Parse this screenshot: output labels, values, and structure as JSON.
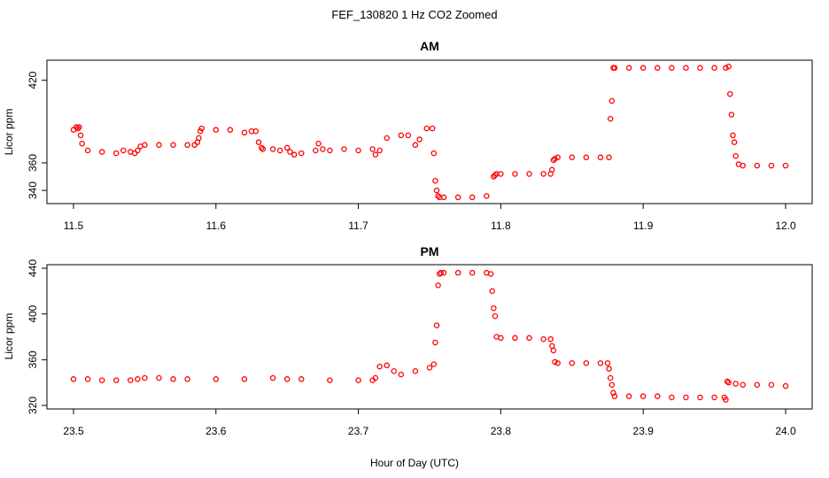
{
  "figure": {
    "title": "FEF_130820  1 Hz CO2 Zoomed",
    "xlabel": "Hour of Day (UTC)",
    "colors": {
      "points": "#ff0000",
      "axes": "#000000",
      "background": "#ffffff"
    }
  },
  "chart_data": [
    {
      "type": "scatter",
      "title": "AM",
      "xlabel": "",
      "ylabel": "Licor ppm",
      "xlim": [
        11.5,
        12.0
      ],
      "ylim": [
        333,
        432
      ],
      "xticks": [
        "11.5",
        "11.6",
        "11.7",
        "11.8",
        "11.9",
        "12.0"
      ],
      "yticks": [
        "340",
        "360",
        "420"
      ],
      "grid": false,
      "marker": "open-circle",
      "series": [
        {
          "x": [
            11.5,
            11.502,
            11.503,
            11.504,
            11.505,
            11.506,
            11.51,
            11.52,
            11.53,
            11.535,
            11.54,
            11.543,
            11.545,
            11.547,
            11.55,
            11.56,
            11.57,
            11.58,
            11.585,
            11.587,
            11.588,
            11.589,
            11.59,
            11.6,
            11.61,
            11.62,
            11.625,
            11.628,
            11.63,
            11.632,
            11.633,
            11.64,
            11.645,
            11.65,
            11.652,
            11.655,
            11.66,
            11.67,
            11.672,
            11.675,
            11.68,
            11.69,
            11.7,
            11.71,
            11.712,
            11.715,
            11.72,
            11.73,
            11.735,
            11.74,
            11.743,
            11.748,
            11.752,
            11.753,
            11.754,
            11.755,
            11.756,
            11.757,
            11.76,
            11.77,
            11.78,
            11.79,
            11.795,
            11.796,
            11.797,
            11.8,
            11.81,
            11.82,
            11.83,
            11.835,
            11.836,
            11.837,
            11.838,
            11.84,
            11.85,
            11.86,
            11.87,
            11.876,
            11.877,
            11.878,
            11.879,
            11.88,
            11.89,
            11.9,
            11.91,
            11.92,
            11.93,
            11.94,
            11.95,
            11.958,
            11.96,
            11.961,
            11.962,
            11.963,
            11.964,
            11.965,
            11.967,
            11.97,
            11.98,
            11.99,
            12.0
          ],
          "y": [
            384,
            386,
            385,
            386,
            380,
            374,
            369,
            368,
            367,
            369,
            368,
            367,
            369,
            372,
            373,
            373,
            373,
            373,
            373,
            375,
            378,
            383,
            385,
            384,
            384,
            382,
            383,
            383,
            375,
            371,
            370,
            370,
            369,
            371,
            368,
            366,
            367,
            369,
            374,
            370,
            369,
            370,
            369,
            370,
            366,
            369,
            378,
            380,
            380,
            373,
            377,
            385,
            385,
            367,
            347,
            340,
            336,
            335,
            335,
            335,
            335,
            336,
            350,
            351,
            352,
            352,
            352,
            352,
            352,
            352,
            355,
            362,
            363,
            364,
            364,
            364,
            364,
            364,
            392,
            405,
            429,
            429,
            429,
            429,
            429,
            429,
            429,
            429,
            429,
            429,
            430,
            410,
            395,
            380,
            375,
            365,
            359,
            358,
            358,
            358,
            358
          ]
        }
      ]
    },
    {
      "type": "scatter",
      "title": "PM",
      "xlabel": "",
      "ylabel": "Licor ppm",
      "xlim": [
        23.5,
        24.0
      ],
      "ylim": [
        320,
        440
      ],
      "xticks": [
        "23.5",
        "23.6",
        "23.7",
        "23.8",
        "23.9",
        "24.0"
      ],
      "yticks": [
        "320",
        "360",
        "400",
        "440"
      ],
      "grid": false,
      "marker": "open-circle",
      "series": [
        {
          "x": [
            23.5,
            23.51,
            23.52,
            23.53,
            23.54,
            23.545,
            23.55,
            23.56,
            23.57,
            23.58,
            23.6,
            23.62,
            23.64,
            23.65,
            23.66,
            23.68,
            23.7,
            23.71,
            23.712,
            23.715,
            23.72,
            23.725,
            23.73,
            23.74,
            23.75,
            23.753,
            23.754,
            23.755,
            23.756,
            23.757,
            23.758,
            23.76,
            23.77,
            23.78,
            23.79,
            23.793,
            23.794,
            23.795,
            23.796,
            23.797,
            23.8,
            23.81,
            23.82,
            23.83,
            23.835,
            23.836,
            23.837,
            23.838,
            23.84,
            23.85,
            23.86,
            23.87,
            23.875,
            23.876,
            23.877,
            23.878,
            23.879,
            23.88,
            23.89,
            23.9,
            23.91,
            23.92,
            23.93,
            23.94,
            23.95,
            23.957,
            23.958,
            23.959,
            23.96,
            23.965,
            23.97,
            23.98,
            23.99,
            24.0
          ],
          "y": [
            343,
            343,
            342,
            342,
            342,
            343,
            344,
            344,
            343,
            343,
            343,
            343,
            344,
            343,
            343,
            342,
            342,
            342,
            344,
            354,
            355,
            350,
            347,
            350,
            353,
            356,
            375,
            390,
            425,
            435,
            436,
            436,
            436,
            436,
            436,
            435,
            420,
            405,
            398,
            380,
            379,
            379,
            379,
            378,
            378,
            372,
            368,
            358,
            357,
            357,
            357,
            357,
            357,
            352,
            344,
            338,
            331,
            328,
            328,
            328,
            328,
            327,
            327,
            327,
            327,
            327,
            325,
            341,
            340,
            339,
            338,
            338,
            338,
            337
          ]
        }
      ]
    }
  ]
}
